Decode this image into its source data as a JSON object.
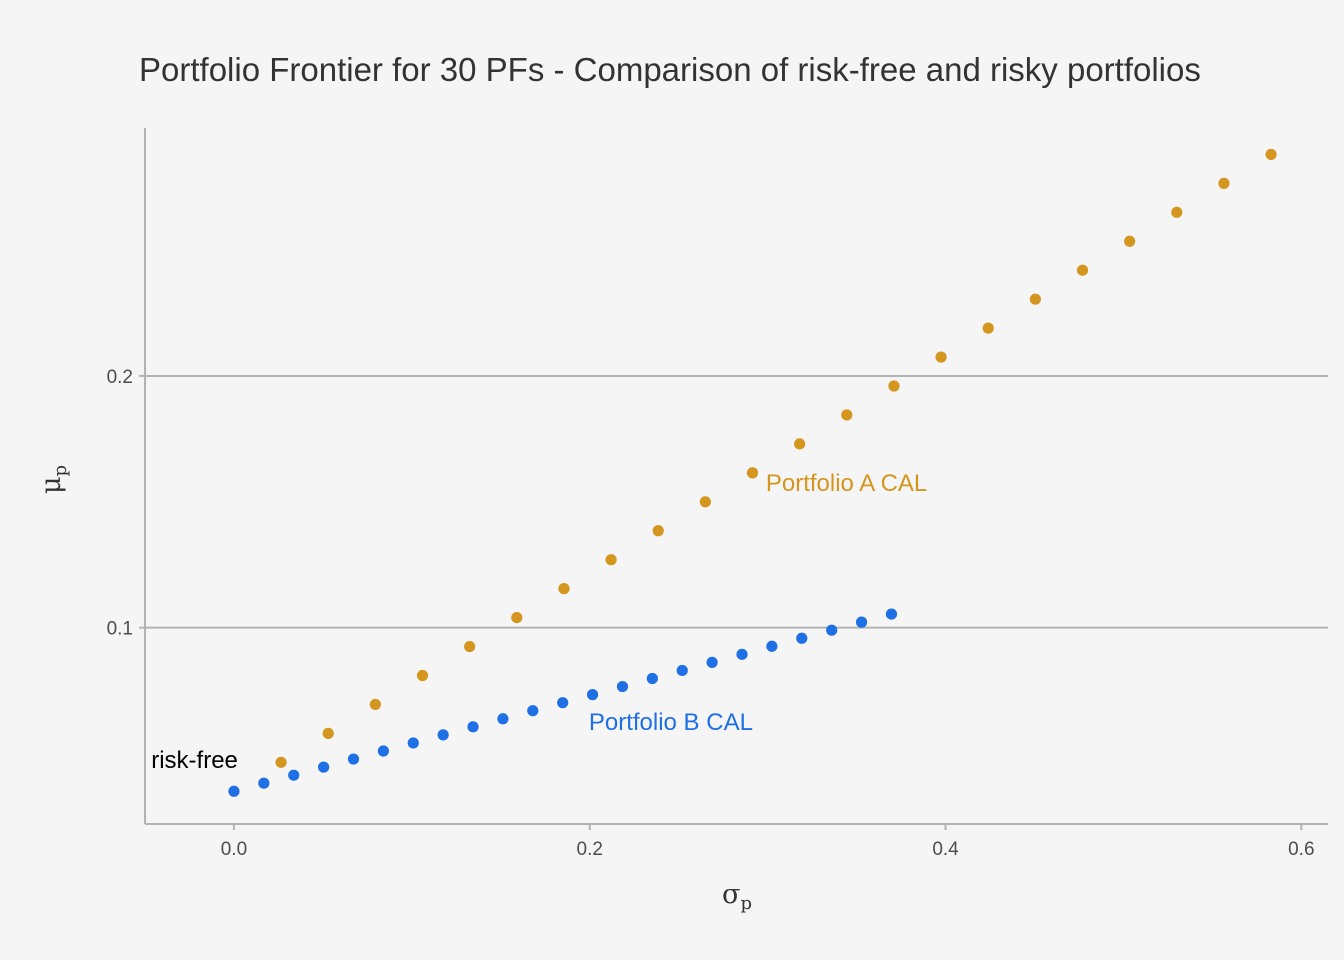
{
  "chart_data": {
    "type": "scatter",
    "title": "Portfolio Frontier for 30 PFs - Comparison of risk-free and risky portfolios",
    "xlabel": "σ",
    "xlabel_subscript": "p",
    "ylabel": "μ",
    "ylabel_subscript": "p",
    "xlim": [
      -0.05,
      0.615
    ],
    "ylim": [
      0.022,
      0.2985
    ],
    "x_ticks": [
      0.0,
      0.2,
      0.4,
      0.6
    ],
    "x_tick_labels": [
      "0.0",
      "0.2",
      "0.4",
      "0.6"
    ],
    "y_ticks": [
      0.1,
      0.2
    ],
    "y_tick_labels": [
      "0.1",
      "0.2"
    ],
    "grid": "horizontal major only",
    "series": [
      {
        "color": "#D4961F",
        "x": [
          0.0265,
          0.053,
          0.0795,
          0.106,
          0.1325,
          0.159,
          0.1855,
          0.212,
          0.2385,
          0.265,
          0.2915,
          0.318,
          0.3445,
          0.371,
          0.3975,
          0.424,
          0.4505,
          0.477,
          0.5035,
          0.53,
          0.5565,
          0.583
        ],
        "y": [
          0.0465,
          0.058,
          0.0695,
          0.081,
          0.0925,
          0.104,
          0.1155,
          0.127,
          0.1385,
          0.15,
          0.1615,
          0.173,
          0.1845,
          0.196,
          0.2075,
          0.219,
          0.2305,
          0.242,
          0.2535,
          0.265,
          0.2765,
          0.288
        ]
      },
      {
        "color": "#1F6FE5",
        "x": [
          0.0,
          0.0168,
          0.0336,
          0.0504,
          0.0672,
          0.084,
          0.1008,
          0.1176,
          0.1344,
          0.1512,
          0.168,
          0.1848,
          0.2016,
          0.2184,
          0.2352,
          0.252,
          0.2688,
          0.2856,
          0.3024,
          0.3192,
          0.336,
          0.3528,
          0.3696
        ],
        "y": [
          0.035,
          0.0382,
          0.0414,
          0.0446,
          0.0478,
          0.051,
          0.0542,
          0.0574,
          0.0606,
          0.0638,
          0.067,
          0.0702,
          0.0734,
          0.0766,
          0.0798,
          0.083,
          0.0862,
          0.0894,
          0.0926,
          0.0958,
          0.099,
          0.1022,
          0.1054
        ]
      }
    ],
    "annotations": [
      {
        "text": "Portfolio A CAL",
        "x": 0.299,
        "y": 0.1575,
        "color": "#D4961F"
      },
      {
        "text": "Portfolio B CAL",
        "x": 0.1995,
        "y": 0.0625,
        "color": "#1F6FE5"
      },
      {
        "text": "risk-free",
        "x": -0.0465,
        "y": 0.0475,
        "color": "#000000"
      }
    ]
  }
}
